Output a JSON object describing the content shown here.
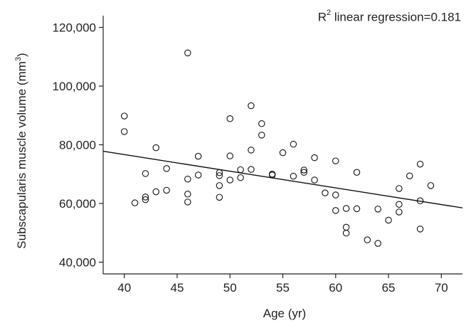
{
  "chart_data": {
    "type": "scatter",
    "xlabel": "Age (yr)",
    "ylabel": "Subscapularis muscle volume (mm",
    "ylabel_sup": "3",
    "ylabel_close": ")",
    "annotation": {
      "prefix": "R",
      "sup": "2",
      "text": " linear regression=0.181"
    },
    "xlim": [
      38,
      72
    ],
    "ylim": [
      36000,
      124000
    ],
    "x_ticks": [
      40,
      45,
      50,
      55,
      60,
      65,
      70
    ],
    "x_tick_labels": [
      "40",
      "45",
      "50",
      "55",
      "60",
      "65",
      "70"
    ],
    "y_ticks": [
      40000,
      60000,
      80000,
      100000,
      120000
    ],
    "y_tick_labels": [
      "40,000",
      "60,000",
      "80,000",
      "100,000",
      "120,000"
    ],
    "grid": false,
    "regression_line": {
      "x": [
        38,
        72
      ],
      "y": [
        77800,
        58500
      ]
    },
    "points": [
      [
        40,
        89800
      ],
      [
        40,
        84500
      ],
      [
        41,
        60200
      ],
      [
        42,
        70200
      ],
      [
        42,
        62200
      ],
      [
        42,
        61300
      ],
      [
        43,
        79000
      ],
      [
        43,
        64000
      ],
      [
        44,
        71900
      ],
      [
        44,
        64500
      ],
      [
        46,
        111300
      ],
      [
        46,
        68300
      ],
      [
        46,
        63200
      ],
      [
        46,
        60500
      ],
      [
        47,
        76100
      ],
      [
        47,
        69700
      ],
      [
        49,
        70500
      ],
      [
        49,
        69500
      ],
      [
        49,
        66100
      ],
      [
        49,
        62100
      ],
      [
        50,
        88900
      ],
      [
        50,
        76200
      ],
      [
        50,
        68000
      ],
      [
        51,
        71500
      ],
      [
        51,
        68800
      ],
      [
        52,
        93300
      ],
      [
        52,
        78200
      ],
      [
        52,
        71600
      ],
      [
        53,
        87200
      ],
      [
        53,
        83300
      ],
      [
        54,
        70000
      ],
      [
        54,
        69700
      ],
      [
        55,
        77300
      ],
      [
        56,
        80200
      ],
      [
        56,
        69300
      ],
      [
        57,
        71400
      ],
      [
        57,
        70600
      ],
      [
        58,
        75600
      ],
      [
        58,
        68000
      ],
      [
        59,
        63600
      ],
      [
        60,
        74500
      ],
      [
        60,
        62900
      ],
      [
        60,
        57600
      ],
      [
        61,
        58300
      ],
      [
        61,
        51900
      ],
      [
        61,
        49900
      ],
      [
        62,
        70600
      ],
      [
        62,
        58200
      ],
      [
        63,
        47600
      ],
      [
        64,
        58100
      ],
      [
        64,
        46400
      ],
      [
        65,
        54300
      ],
      [
        66,
        65100
      ],
      [
        66,
        59700
      ],
      [
        66,
        57100
      ],
      [
        67,
        69400
      ],
      [
        68,
        73400
      ],
      [
        68,
        60900
      ],
      [
        68,
        51300
      ],
      [
        69,
        66100
      ]
    ]
  }
}
